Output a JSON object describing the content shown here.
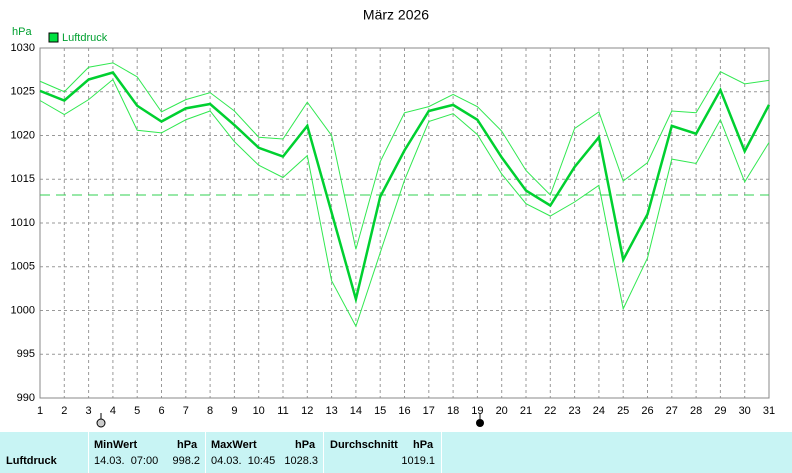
{
  "chart_data": {
    "type": "line",
    "title": "März 2026",
    "y_unit": "hPa",
    "x": [
      1,
      2,
      3,
      4,
      5,
      6,
      7,
      8,
      9,
      10,
      11,
      12,
      13,
      14,
      15,
      16,
      17,
      18,
      19,
      20,
      21,
      22,
      23,
      24,
      25,
      26,
      27,
      28,
      29,
      30,
      31
    ],
    "xlim": [
      1,
      31
    ],
    "ylim": [
      990,
      1030
    ],
    "yticks": [
      990,
      995,
      1000,
      1005,
      1010,
      1015,
      1020,
      1025,
      1030
    ],
    "grid": true,
    "reference_line": 1013.2,
    "series": [
      {
        "name": "Luftdruck",
        "color": "#00d030",
        "width": 2.5,
        "values": [
          1025.1,
          1024.0,
          1026.4,
          1027.2,
          1023.4,
          1021.6,
          1023.1,
          1023.6,
          1021.2,
          1018.6,
          1017.6,
          1021.1,
          1011.2,
          1001.3,
          1013.0,
          1018.3,
          1022.8,
          1023.5,
          1021.8,
          1017.5,
          1013.7,
          1012.0,
          1016.4,
          1019.8,
          1005.8,
          1011.0,
          1021.1,
          1020.2,
          1025.2,
          1018.2,
          1023.5
        ]
      },
      {
        "color": "#30e850",
        "width": 1,
        "values": [
          1026.2,
          1025.0,
          1027.8,
          1028.3,
          1026.7,
          1022.7,
          1024.1,
          1024.9,
          1022.8,
          1019.8,
          1019.6,
          1023.8,
          1020.0,
          1007.0,
          1017.0,
          1022.6,
          1023.3,
          1024.7,
          1023.3,
          1020.5,
          1016.0,
          1013.2,
          1020.8,
          1022.7,
          1014.8,
          1016.9,
          1022.8,
          1022.6,
          1027.3,
          1025.9,
          1026.3
        ]
      },
      {
        "color": "#30e850",
        "width": 1,
        "values": [
          1024.0,
          1022.4,
          1024.1,
          1026.4,
          1020.6,
          1020.3,
          1021.8,
          1022.8,
          1019.3,
          1016.6,
          1015.2,
          1017.7,
          1003.4,
          998.2,
          1006.6,
          1014.9,
          1021.6,
          1022.5,
          1020.1,
          1015.6,
          1012.2,
          1010.8,
          1012.4,
          1014.3,
          1000.2,
          1006.0,
          1017.3,
          1016.8,
          1021.8,
          1014.7,
          1019.2
        ]
      }
    ]
  },
  "footer": {
    "label": "Luftdruck",
    "columns": [
      {
        "title": "MinWert",
        "unit": "hPa",
        "time": "14.03.  07:00",
        "value": "998.2"
      },
      {
        "title": "MaxWert",
        "unit": "hPa",
        "time": "04.03.  10:45",
        "value": "1028.3"
      },
      {
        "title": "Durchschnitt",
        "unit": "hPa",
        "value": "1019.1"
      }
    ]
  }
}
